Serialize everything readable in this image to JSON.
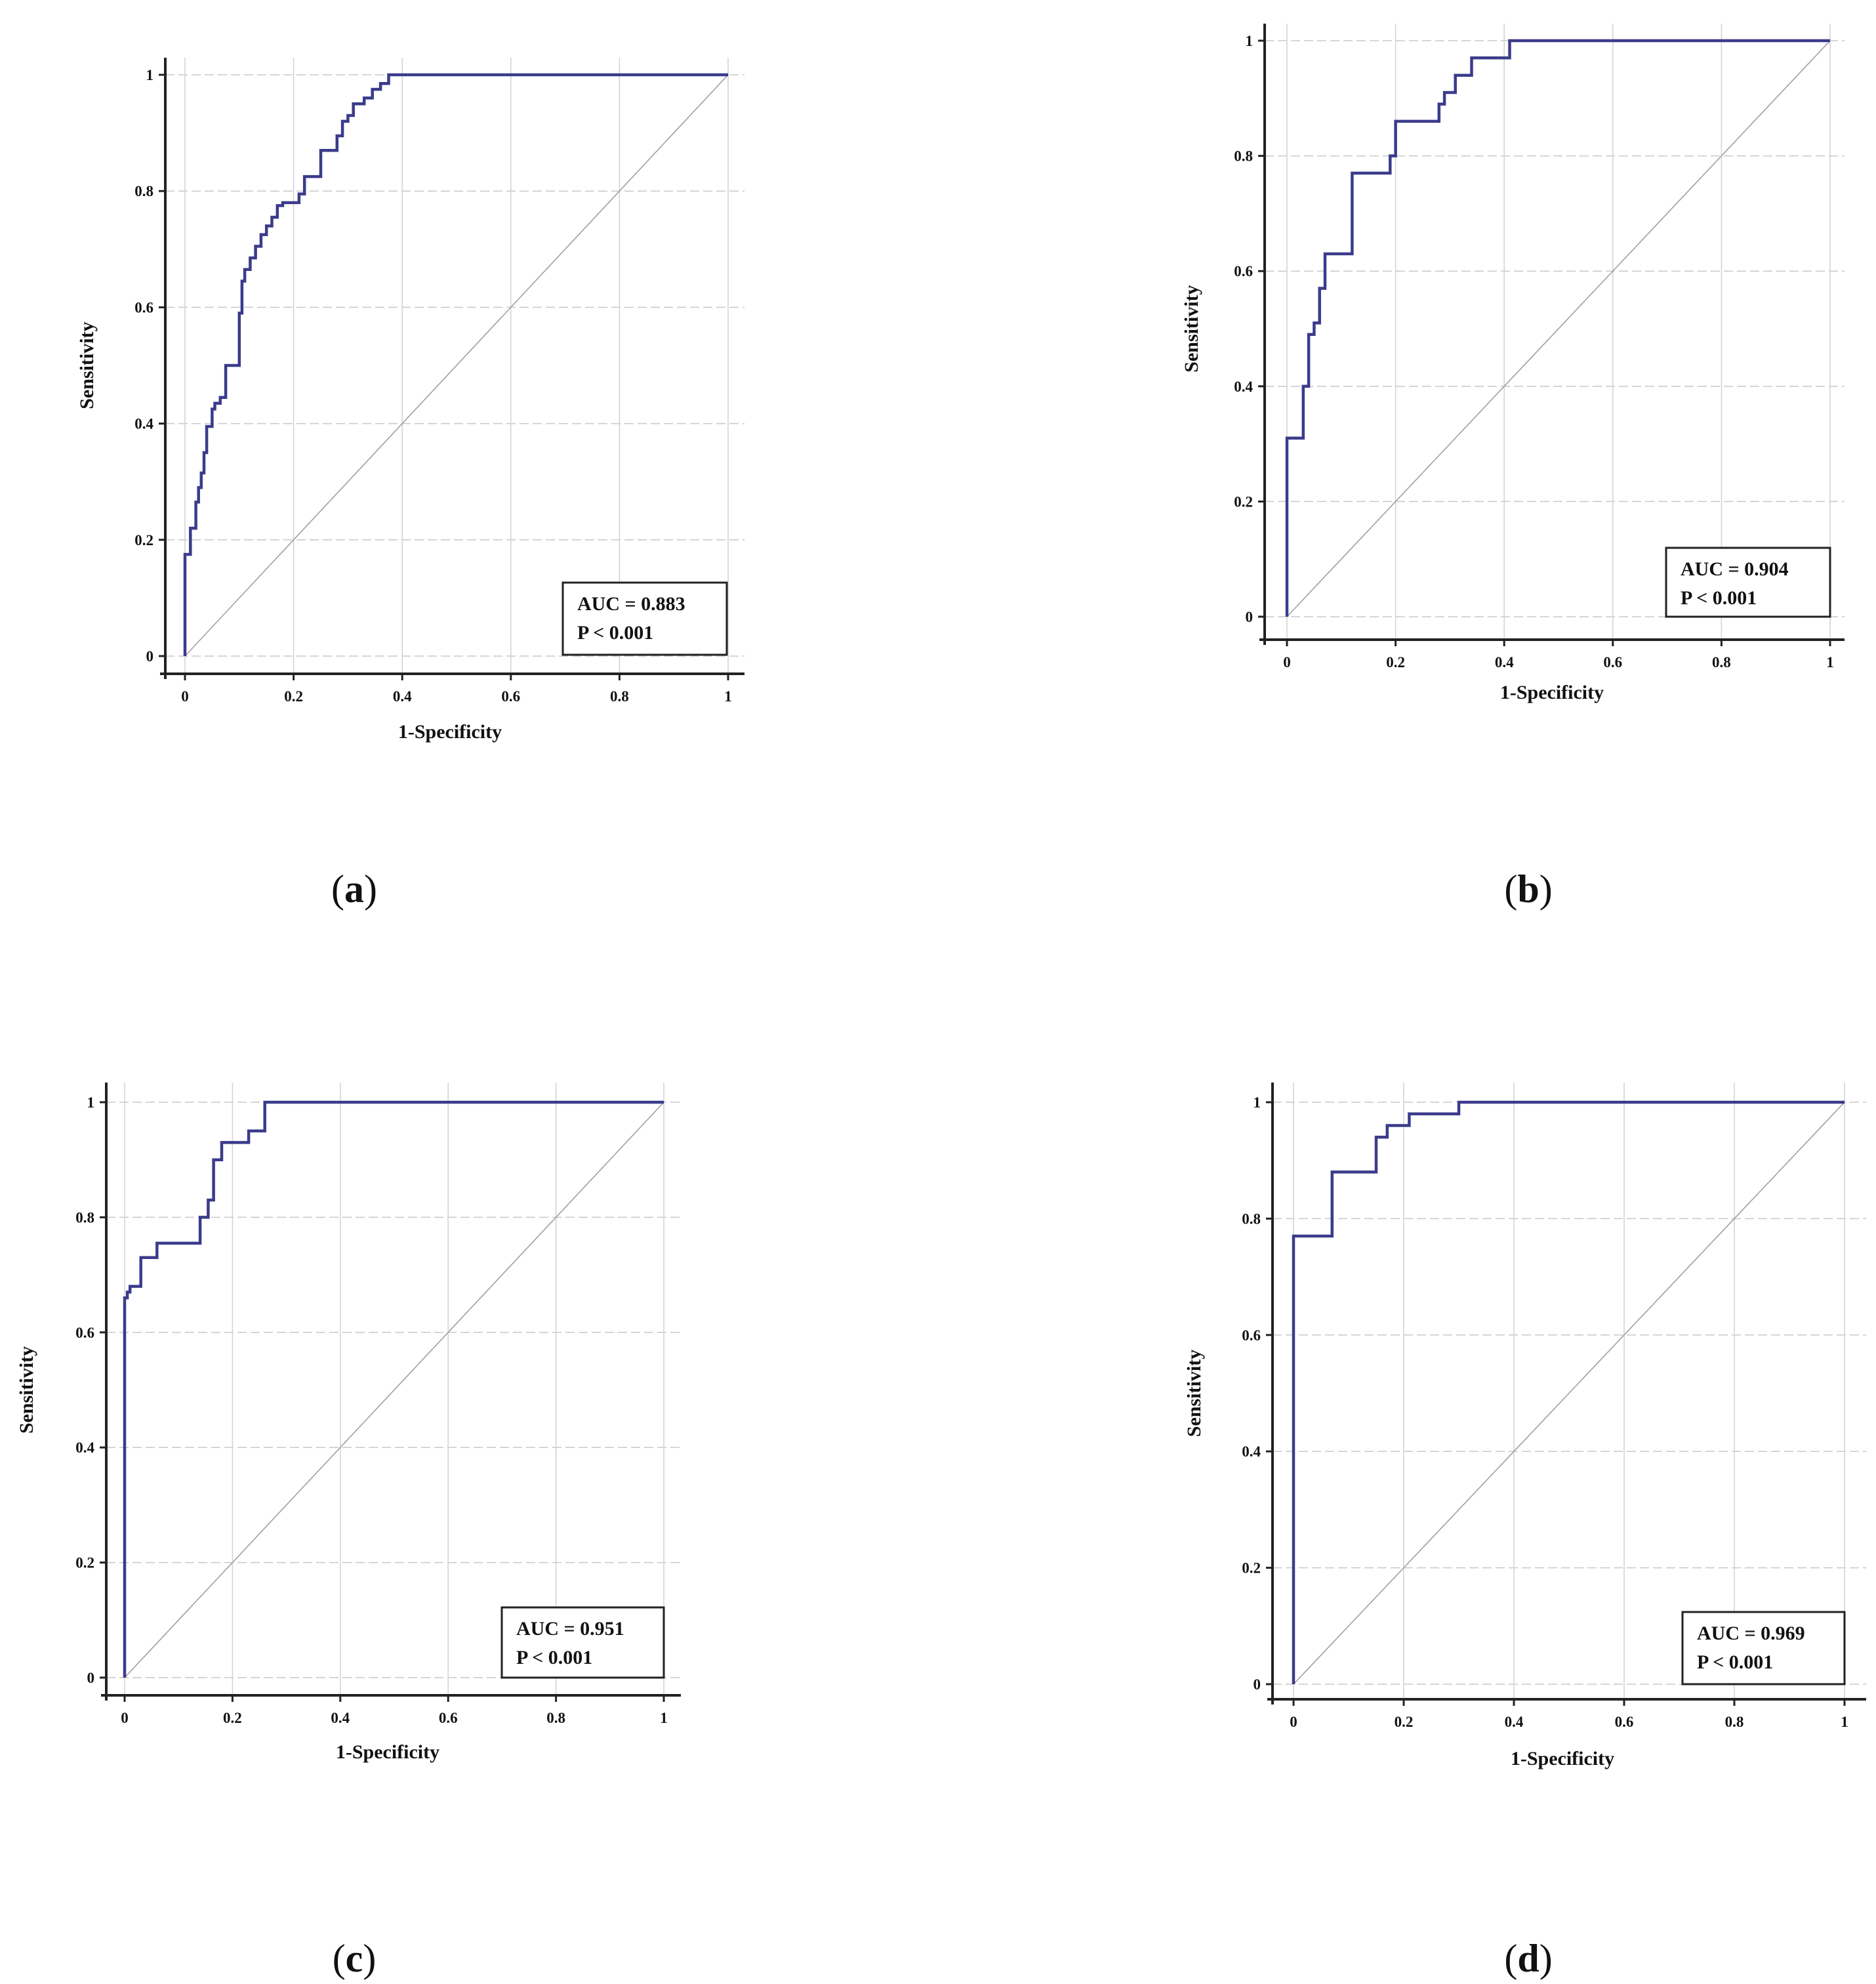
{
  "chart_data": [
    {
      "type": "line",
      "panel_label": "a",
      "xlabel": "1-Specificity",
      "ylabel": "Sensitivity",
      "xlim": [
        0,
        1
      ],
      "ylim": [
        0,
        1
      ],
      "xticks": [
        "0",
        "0.2",
        "0.4",
        "0.6",
        "0.8",
        "1"
      ],
      "yticks": [
        "0",
        "0.2",
        "0.4",
        "0.6",
        "0.8",
        "1"
      ],
      "grid": true,
      "legend": "bottom-right",
      "annotation": [
        "AUC = 0.883",
        "P < 0.001"
      ],
      "line_color": "#3b3b8c",
      "series": [
        {
          "name": "ROC curve",
          "x": [
            0,
            0,
            0.01,
            0.01,
            0.02,
            0.02,
            0.025,
            0.025,
            0.03,
            0.03,
            0.035,
            0.035,
            0.04,
            0.04,
            0.05,
            0.05,
            0.055,
            0.055,
            0.065,
            0.065,
            0.075,
            0.075,
            0.1,
            0.1,
            0.105,
            0.105,
            0.11,
            0.11,
            0.12,
            0.12,
            0.13,
            0.13,
            0.14,
            0.14,
            0.15,
            0.15,
            0.16,
            0.16,
            0.17,
            0.17,
            0.18,
            0.18,
            0.21,
            0.21,
            0.22,
            0.22,
            0.25,
            0.25,
            0.28,
            0.28,
            0.29,
            0.29,
            0.3,
            0.3,
            0.31,
            0.31,
            0.33,
            0.33,
            0.345,
            0.345,
            0.36,
            0.36,
            0.375,
            0.375,
            0.385,
            0.385,
            1
          ],
          "y": [
            0,
            0.175,
            0.175,
            0.22,
            0.22,
            0.265,
            0.265,
            0.29,
            0.29,
            0.315,
            0.315,
            0.35,
            0.35,
            0.395,
            0.395,
            0.425,
            0.425,
            0.435,
            0.435,
            0.445,
            0.445,
            0.5,
            0.5,
            0.59,
            0.59,
            0.645,
            0.645,
            0.665,
            0.665,
            0.685,
            0.685,
            0.705,
            0.705,
            0.725,
            0.725,
            0.74,
            0.74,
            0.755,
            0.755,
            0.775,
            0.775,
            0.78,
            0.78,
            0.795,
            0.795,
            0.825,
            0.825,
            0.87,
            0.87,
            0.895,
            0.895,
            0.92,
            0.92,
            0.93,
            0.93,
            0.95,
            0.95,
            0.96,
            0.96,
            0.975,
            0.975,
            0.985,
            0.985,
            1,
            1,
            1,
            1
          ]
        },
        {
          "name": "Reference line",
          "x": [
            0,
            1
          ],
          "y": [
            0,
            1
          ]
        }
      ]
    },
    {
      "type": "line",
      "panel_label": "b",
      "xlabel": "1-Specificity",
      "ylabel": "Sensitivity",
      "xlim": [
        0,
        1
      ],
      "ylim": [
        0,
        1
      ],
      "xticks": [
        "0",
        "0.2",
        "0.4",
        "0.6",
        "0.8",
        "1"
      ],
      "yticks": [
        "0",
        "0.2",
        "0.4",
        "0.6",
        "0.8",
        "1"
      ],
      "grid": true,
      "legend": "bottom-right",
      "annotation": [
        "AUC = 0.904",
        "P < 0.001"
      ],
      "line_color": "#3b3b8c",
      "series": [
        {
          "name": "ROC curve",
          "x": [
            0,
            0,
            0.03,
            0.03,
            0.04,
            0.04,
            0.05,
            0.05,
            0.06,
            0.06,
            0.07,
            0.07,
            0.12,
            0.12,
            0.19,
            0.19,
            0.2,
            0.2,
            0.28,
            0.28,
            0.29,
            0.29,
            0.31,
            0.31,
            0.34,
            0.34,
            0.41,
            0.41,
            1
          ],
          "y": [
            0,
            0.31,
            0.31,
            0.4,
            0.4,
            0.49,
            0.49,
            0.51,
            0.51,
            0.57,
            0.57,
            0.63,
            0.63,
            0.77,
            0.77,
            0.8,
            0.8,
            0.86,
            0.86,
            0.89,
            0.89,
            0.91,
            0.91,
            0.94,
            0.94,
            0.97,
            0.97,
            1,
            1
          ]
        },
        {
          "name": "Reference line",
          "x": [
            0,
            1
          ],
          "y": [
            0,
            1
          ]
        }
      ]
    },
    {
      "type": "line",
      "panel_label": "c",
      "xlabel": "1-Specificity",
      "ylabel": "Sensitivity",
      "xlim": [
        0,
        1
      ],
      "ylim": [
        0,
        1
      ],
      "xticks": [
        "0",
        "0.2",
        "0.4",
        "0.6",
        "0.8",
        "1"
      ],
      "yticks": [
        "0",
        "0.2",
        "0.4",
        "0.6",
        "0.8",
        "1"
      ],
      "grid": true,
      "legend": "bottom-right",
      "annotation": [
        "AUC = 0.951",
        "P < 0.001"
      ],
      "line_color": "#3b3b8c",
      "series": [
        {
          "name": "ROC curve",
          "x": [
            0,
            0,
            0.005,
            0.005,
            0.01,
            0.01,
            0.03,
            0.03,
            0.06,
            0.06,
            0.14,
            0.14,
            0.155,
            0.155,
            0.165,
            0.165,
            0.18,
            0.18,
            0.22,
            0.22,
            0.23,
            0.23,
            0.26,
            0.26,
            1
          ],
          "y": [
            0,
            0.66,
            0.66,
            0.67,
            0.67,
            0.68,
            0.68,
            0.73,
            0.73,
            0.755,
            0.755,
            0.8,
            0.8,
            0.83,
            0.83,
            0.9,
            0.9,
            0.93,
            0.93,
            0.93,
            0.93,
            0.95,
            0.95,
            1,
            1
          ]
        },
        {
          "name": "Reference line",
          "x": [
            0,
            1
          ],
          "y": [
            0,
            1
          ]
        }
      ]
    },
    {
      "type": "line",
      "panel_label": "d",
      "xlabel": "1-Specificity",
      "ylabel": "Sensitivity",
      "xlim": [
        0,
        1
      ],
      "ylim": [
        0,
        1
      ],
      "xticks": [
        "0",
        "0.2",
        "0.4",
        "0.6",
        "0.8",
        "1"
      ],
      "yticks": [
        "0",
        "0.2",
        "0.4",
        "0.6",
        "0.8",
        "1"
      ],
      "grid": true,
      "legend": "bottom-right",
      "annotation": [
        "AUC = 0.969",
        "P < 0.001"
      ],
      "line_color": "#3b3b8c",
      "series": [
        {
          "name": "ROC curve",
          "x": [
            0,
            0,
            0.07,
            0.07,
            0.15,
            0.15,
            0.17,
            0.17,
            0.2,
            0.2,
            0.21,
            0.21,
            0.3,
            0.3,
            1
          ],
          "y": [
            0,
            0.77,
            0.77,
            0.88,
            0.88,
            0.94,
            0.94,
            0.96,
            0.96,
            0.96,
            0.96,
            0.98,
            0.98,
            1,
            1
          ]
        },
        {
          "name": "Reference line",
          "x": [
            0,
            1
          ],
          "y": [
            0,
            1
          ]
        }
      ]
    }
  ]
}
